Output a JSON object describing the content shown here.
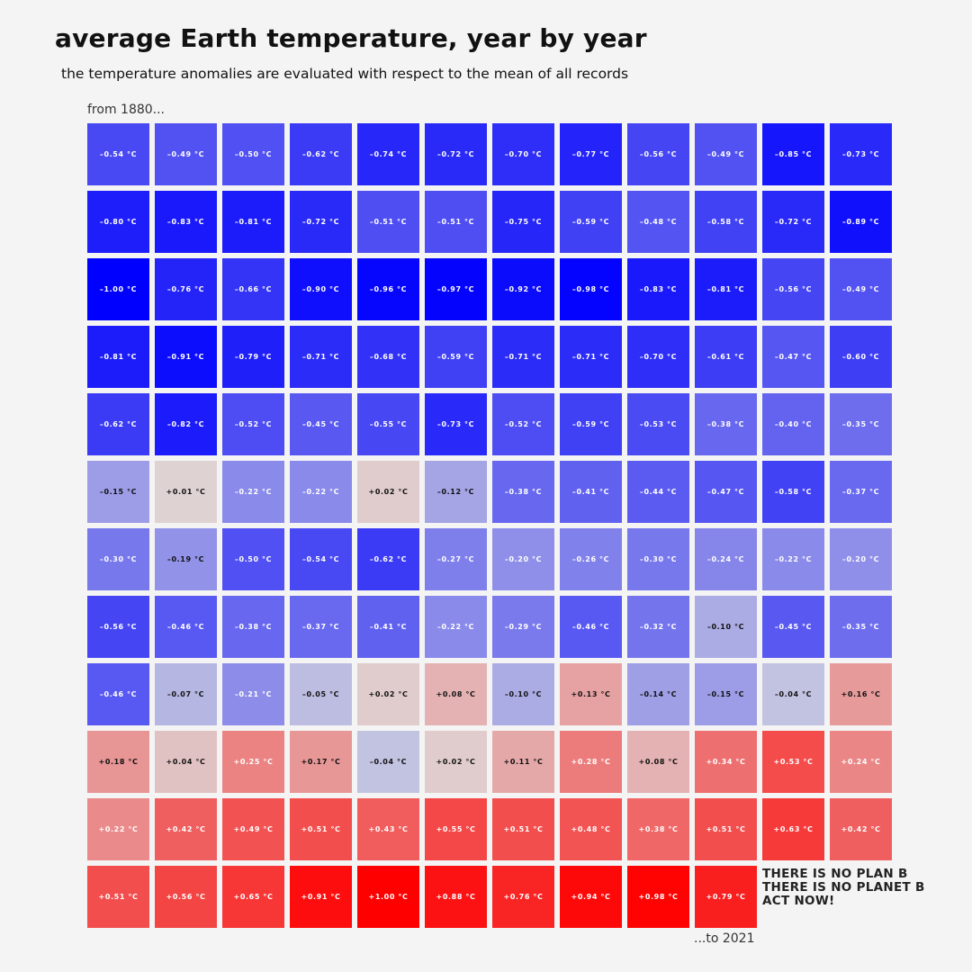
{
  "title": "average Earth temperature, year by year",
  "subtitle": "the temperature anomalies are evaluated with respect to the mean of all records",
  "start_label": "from 1880...",
  "end_label": "...to 2021",
  "slogan": [
    "THERE IS NO PLAN B",
    "THERE IS NO PLANET B",
    "ACT NOW!"
  ],
  "colors": {
    "cold": "#0000ff",
    "neutral": "#dddddd",
    "warm": "#ff0000",
    "background": "#f4f4f4",
    "dark_label": "#111111",
    "light_label": "#ffffff"
  },
  "chart_data": {
    "type": "heatmap",
    "title": "average Earth temperature, year by year",
    "subtitle": "the temperature anomalies are evaluated with respect to the mean of all records",
    "unit": "°C",
    "first_year": 1880,
    "last_year": 2021,
    "columns": 12,
    "value_range": [
      -1.0,
      1.0
    ],
    "values": [
      -0.54,
      -0.49,
      -0.5,
      -0.62,
      -0.74,
      -0.72,
      -0.7,
      -0.77,
      -0.56,
      -0.49,
      -0.85,
      -0.73,
      -0.8,
      -0.83,
      -0.81,
      -0.72,
      -0.51,
      -0.51,
      -0.75,
      -0.59,
      -0.48,
      -0.58,
      -0.72,
      -0.89,
      -1.0,
      -0.76,
      -0.66,
      -0.9,
      -0.96,
      -0.97,
      -0.92,
      -0.98,
      -0.83,
      -0.81,
      -0.56,
      -0.49,
      -0.81,
      -0.91,
      -0.79,
      -0.71,
      -0.68,
      -0.59,
      -0.71,
      -0.71,
      -0.7,
      -0.61,
      -0.47,
      -0.6,
      -0.62,
      -0.82,
      -0.52,
      -0.45,
      -0.55,
      -0.73,
      -0.52,
      -0.59,
      -0.53,
      -0.38,
      -0.4,
      -0.35,
      -0.15,
      0.01,
      -0.22,
      -0.22,
      0.02,
      -0.12,
      -0.38,
      -0.41,
      -0.44,
      -0.47,
      -0.58,
      -0.37,
      -0.3,
      -0.19,
      -0.5,
      -0.54,
      -0.62,
      -0.27,
      -0.2,
      -0.26,
      -0.3,
      -0.24,
      -0.22,
      -0.2,
      -0.56,
      -0.46,
      -0.38,
      -0.37,
      -0.41,
      -0.22,
      -0.29,
      -0.46,
      -0.32,
      -0.1,
      -0.45,
      -0.35,
      -0.46,
      -0.07,
      -0.21,
      -0.05,
      0.02,
      0.08,
      -0.1,
      0.13,
      -0.14,
      -0.15,
      -0.04,
      0.16,
      0.18,
      0.04,
      0.25,
      0.17,
      -0.04,
      0.02,
      0.11,
      0.28,
      0.08,
      0.34,
      0.53,
      0.24,
      0.22,
      0.42,
      0.49,
      0.51,
      0.43,
      0.55,
      0.51,
      0.48,
      0.38,
      0.51,
      0.63,
      0.42,
      0.51,
      0.56,
      0.65,
      0.91,
      1.0,
      0.88,
      0.76,
      0.94,
      0.98,
      0.79
    ]
  }
}
